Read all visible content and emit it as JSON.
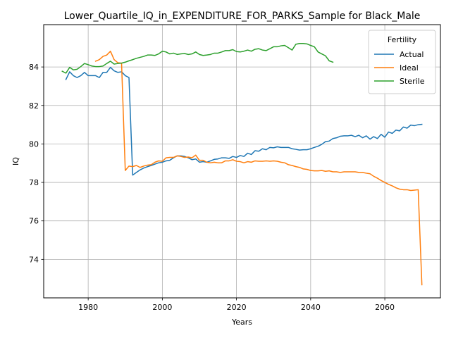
{
  "chart_data": {
    "type": "line",
    "title": "Lower_Quartile_IQ_in_EXPENDITURE_FOR_PARKS_Sample for Black_Male",
    "xlabel": "Years",
    "ylabel": "IQ",
    "xlim": [
      1968,
      2075
    ],
    "ylim": [
      72.0,
      86.2
    ],
    "xticks": [
      1980,
      2000,
      2020,
      2040,
      2060
    ],
    "yticks": [
      74,
      76,
      78,
      80,
      82,
      84
    ],
    "grid": true,
    "legend": {
      "title": "Fertility",
      "position": "top-right"
    },
    "series": [
      {
        "name": "Actual",
        "color": "#1f77b4",
        "x": [
          1974,
          1975,
          1976,
          1977,
          1978,
          1979,
          1980,
          1981,
          1982,
          1983,
          1984,
          1985,
          1986,
          1987,
          1988,
          1989,
          1990,
          1991,
          1992,
          1993,
          1994,
          1995,
          1996,
          1997,
          1998,
          1999,
          2000,
          2001,
          2002,
          2003,
          2004,
          2005,
          2006,
          2007,
          2008,
          2009,
          2010,
          2011,
          2012,
          2013,
          2014,
          2015,
          2016,
          2017,
          2018,
          2019,
          2020,
          2021,
          2022,
          2023,
          2024,
          2025,
          2026,
          2027,
          2028,
          2029,
          2030,
          2031,
          2032,
          2033,
          2034,
          2035,
          2036,
          2037,
          2038,
          2039,
          2040,
          2041,
          2042,
          2043,
          2044,
          2045,
          2046,
          2047,
          2048,
          2049,
          2050,
          2051,
          2052,
          2053,
          2054,
          2055,
          2056,
          2057,
          2058,
          2059,
          2060,
          2061,
          2062,
          2063,
          2064,
          2065,
          2066,
          2067,
          2068,
          2069,
          2070
        ],
        "values": [
          83.35,
          83.75,
          83.55,
          83.45,
          83.55,
          83.72,
          83.55,
          83.55,
          83.55,
          83.45,
          83.72,
          83.72,
          83.98,
          83.8,
          83.72,
          83.75,
          83.55,
          83.45,
          78.38,
          78.52,
          78.65,
          78.75,
          78.82,
          78.88,
          78.95,
          79.02,
          79.05,
          79.12,
          79.15,
          79.28,
          79.38,
          79.38,
          79.35,
          79.28,
          79.18,
          79.22,
          79.05,
          79.08,
          79.05,
          79.12,
          79.2,
          79.22,
          79.28,
          79.28,
          79.25,
          79.35,
          79.3,
          79.4,
          79.35,
          79.52,
          79.45,
          79.65,
          79.62,
          79.75,
          79.7,
          79.82,
          79.8,
          79.85,
          79.82,
          79.82,
          79.82,
          79.75,
          79.72,
          79.68,
          79.7,
          79.7,
          79.75,
          79.82,
          79.88,
          79.98,
          80.12,
          80.15,
          80.28,
          80.32,
          80.4,
          80.42,
          80.42,
          80.45,
          80.38,
          80.45,
          80.32,
          80.42,
          80.25,
          80.38,
          80.28,
          80.5,
          80.35,
          80.62,
          80.55,
          80.72,
          80.68,
          80.88,
          80.82,
          80.98,
          80.95,
          81.0,
          81.02
        ]
      },
      {
        "name": "Ideal",
        "color": "#ff7f0e",
        "x": [
          1982,
          1983,
          1984,
          1985,
          1986,
          1987,
          1988,
          1989,
          1990,
          1991,
          1992,
          1993,
          1994,
          1995,
          1996,
          1997,
          1998,
          1999,
          2000,
          2001,
          2002,
          2003,
          2004,
          2005,
          2006,
          2007,
          2008,
          2009,
          2010,
          2011,
          2012,
          2013,
          2014,
          2015,
          2016,
          2017,
          2018,
          2019,
          2020,
          2021,
          2022,
          2023,
          2024,
          2025,
          2026,
          2027,
          2028,
          2029,
          2030,
          2031,
          2032,
          2033,
          2034,
          2035,
          2036,
          2037,
          2038,
          2039,
          2040,
          2041,
          2042,
          2043,
          2044,
          2045,
          2046,
          2047,
          2048,
          2049,
          2050,
          2051,
          2052,
          2053,
          2054,
          2055,
          2056,
          2057,
          2058,
          2059,
          2060,
          2061,
          2062,
          2063,
          2064,
          2065,
          2066,
          2067,
          2068,
          2069,
          2070
        ],
        "values": [
          84.3,
          84.38,
          84.55,
          84.62,
          84.82,
          84.38,
          84.22,
          84.2,
          78.62,
          78.85,
          78.82,
          78.88,
          78.78,
          78.85,
          78.9,
          78.92,
          79.05,
          79.12,
          79.1,
          79.28,
          79.3,
          79.3,
          79.38,
          79.35,
          79.3,
          79.32,
          79.28,
          79.42,
          79.15,
          79.15,
          79.05,
          79.02,
          79.05,
          79.02,
          79.02,
          79.12,
          79.12,
          79.18,
          79.1,
          79.08,
          79.02,
          79.08,
          79.05,
          79.12,
          79.1,
          79.1,
          79.12,
          79.1,
          79.12,
          79.1,
          79.05,
          79.02,
          78.92,
          78.88,
          78.82,
          78.78,
          78.7,
          78.68,
          78.62,
          78.6,
          78.6,
          78.62,
          78.58,
          78.6,
          78.55,
          78.55,
          78.52,
          78.55,
          78.55,
          78.55,
          78.55,
          78.52,
          78.52,
          78.48,
          78.45,
          78.32,
          78.22,
          78.1,
          78.0,
          77.9,
          77.82,
          77.72,
          77.65,
          77.62,
          77.62,
          77.58,
          77.6,
          77.62,
          72.68
        ]
      },
      {
        "name": "Sterile",
        "color": "#2ca02c",
        "x": [
          1973,
          1974,
          1975,
          1976,
          1977,
          1978,
          1979,
          1980,
          1981,
          1982,
          1983,
          1984,
          1985,
          1986,
          1987,
          1988,
          1989,
          1990,
          1991,
          1992,
          1993,
          1994,
          1995,
          1996,
          1997,
          1998,
          1999,
          2000,
          2001,
          2002,
          2003,
          2004,
          2005,
          2006,
          2007,
          2008,
          2009,
          2010,
          2011,
          2012,
          2013,
          2014,
          2015,
          2016,
          2017,
          2018,
          2019,
          2020,
          2021,
          2022,
          2023,
          2024,
          2025,
          2026,
          2027,
          2028,
          2029,
          2030,
          2031,
          2032,
          2033,
          2034,
          2035,
          2036,
          2037,
          2038,
          2039,
          2040,
          2041,
          2042,
          2043,
          2044,
          2045,
          2046
        ],
        "values": [
          83.78,
          83.68,
          83.98,
          83.85,
          83.88,
          84.02,
          84.18,
          84.12,
          84.05,
          84.02,
          84.02,
          84.05,
          84.18,
          84.3,
          84.15,
          84.18,
          84.2,
          84.25,
          84.32,
          84.38,
          84.45,
          84.5,
          84.55,
          84.62,
          84.62,
          84.6,
          84.68,
          84.82,
          84.78,
          84.68,
          84.72,
          84.65,
          84.68,
          84.7,
          84.65,
          84.68,
          84.78,
          84.65,
          84.6,
          84.62,
          84.65,
          84.72,
          84.72,
          84.78,
          84.85,
          84.85,
          84.9,
          84.8,
          84.78,
          84.82,
          84.88,
          84.82,
          84.92,
          84.95,
          84.88,
          84.85,
          84.95,
          85.05,
          85.05,
          85.1,
          85.12,
          85.0,
          84.88,
          85.18,
          85.22,
          85.22,
          85.2,
          85.12,
          85.05,
          84.78,
          84.68,
          84.58,
          84.32,
          84.25
        ]
      }
    ]
  }
}
